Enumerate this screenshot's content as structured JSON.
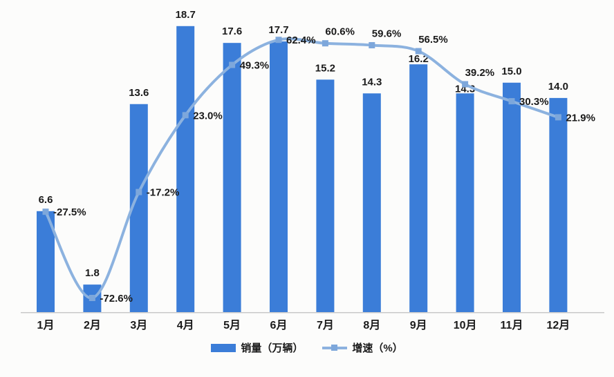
{
  "chart_data": {
    "type": "combo",
    "title": "",
    "categories": [
      "1月",
      "2月",
      "3月",
      "4月",
      "5月",
      "6月",
      "7月",
      "8月",
      "9月",
      "10月",
      "11月",
      "12月"
    ],
    "series": [
      {
        "name": "销量（万辆）",
        "type": "bar",
        "axis": "left",
        "values": [
          6.6,
          1.8,
          13.6,
          18.7,
          17.6,
          17.7,
          15.2,
          14.3,
          16.2,
          14.3,
          15.0,
          14.0
        ],
        "labels": [
          "6.6",
          "1.8",
          "13.6",
          "18.7",
          "17.6",
          "17.7",
          "15.2",
          "14.3",
          "16.2",
          "14.3",
          "15.0",
          "14.0"
        ],
        "color": "#3b7dd8"
      },
      {
        "name": "增速（%）",
        "type": "line",
        "axis": "right",
        "values": [
          -27.5,
          -72.6,
          -17.2,
          23.0,
          49.3,
          62.4,
          60.6,
          59.6,
          56.5,
          39.2,
          30.3,
          21.9
        ],
        "labels": [
          "-27.5%",
          "-72.6%",
          "-17.2%",
          "23.0%",
          "49.3%",
          "62.4%",
          "60.6%",
          "59.6%",
          "56.5%",
          "39.2%",
          "30.3%",
          "21.9%"
        ],
        "color": "#8cb2df",
        "marker_color": "#7da7db"
      }
    ],
    "ylim": [
      0,
      20
    ],
    "y2lim": [
      -80,
      80
    ],
    "grid": false,
    "axes_visible": false,
    "legend_position": "bottom",
    "line_label_placement": [
      "right",
      "right",
      "right",
      "right",
      "right",
      "right",
      "above",
      "above",
      "above",
      "above",
      "right",
      "right"
    ],
    "label_color": "#1a1a1a",
    "axis_line_color": "#c9c9c9"
  }
}
